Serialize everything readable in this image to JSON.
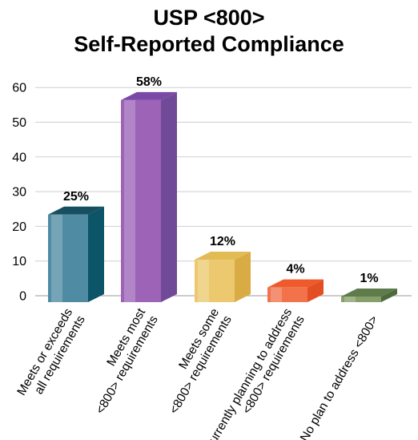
{
  "chart_data": {
    "type": "bar",
    "title_lines": [
      "USP <800>",
      "Self-Reported Compliance"
    ],
    "categories": [
      [
        "Meets or exceeds",
        "all requirements"
      ],
      [
        "Meets most",
        "<800> requirements"
      ],
      [
        "Meets some",
        "<800> requirements"
      ],
      [
        "Currently planning to address",
        "<800> requirements"
      ],
      [
        "No plan to address <800>"
      ]
    ],
    "values": [
      25,
      58,
      12,
      4,
      1
    ],
    "data_labels": [
      "25%",
      "58%",
      "12%",
      "4%",
      "1%"
    ],
    "y_ticks": [
      "0",
      "10",
      "20",
      "30",
      "40",
      "50",
      "60"
    ],
    "ylim": [
      0,
      60
    ],
    "grid": true,
    "colors": {
      "front": [
        "#4f8ba3",
        "#9c63b7",
        "#ecc96f",
        "#f2724c",
        "#86a06a"
      ],
      "side": [
        "#0c5468",
        "#704a98",
        "#d9ab45",
        "#e34f22",
        "#4d6a3d"
      ],
      "top": [
        "#174f61",
        "#7a48a6",
        "#e3bb55",
        "#ee5a2c",
        "#5f7b4b"
      ]
    }
  }
}
